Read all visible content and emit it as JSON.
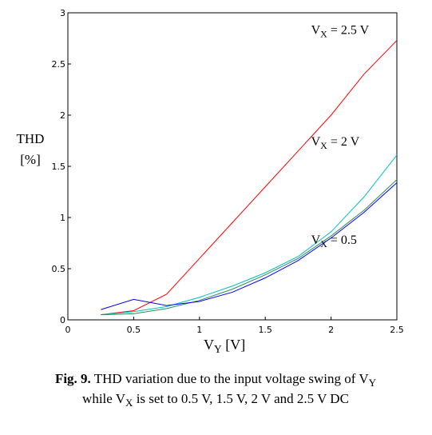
{
  "chart_data": {
    "type": "line",
    "x": [
      0.25,
      0.5,
      0.75,
      1,
      1.25,
      1.5,
      1.75,
      2,
      2.25,
      2.5
    ],
    "series": [
      {
        "color": "#ff0000",
        "values": [
          0.05,
          0.09,
          0.25,
          0.6,
          0.95,
          1.3,
          1.65,
          2.0,
          2.4,
          2.73
        ]
      },
      {
        "color": "#00bfbf",
        "values": [
          0.05,
          0.08,
          0.13,
          0.22,
          0.33,
          0.46,
          0.62,
          0.86,
          1.2,
          1.61
        ]
      },
      {
        "color": "#2e8b57",
        "values": [
          0.05,
          0.06,
          0.11,
          0.19,
          0.3,
          0.44,
          0.6,
          0.82,
          1.07,
          1.37
        ]
      },
      {
        "color": "#0000ff",
        "values": [
          0.1,
          0.2,
          0.14,
          0.18,
          0.27,
          0.41,
          0.58,
          0.8,
          1.05,
          1.34
        ]
      }
    ],
    "xlim": [
      0,
      2.5
    ],
    "ylim": [
      0,
      3
    ],
    "xticks": [
      0,
      0.5,
      1,
      1.5,
      2,
      2.5
    ],
    "yticks": [
      0,
      0.5,
      1,
      1.5,
      2,
      2.5,
      3
    ],
    "ylabel": [
      "THD",
      "[%]"
    ],
    "xlabel": {
      "main": "V",
      "sub": "Y",
      "rest": " [V]"
    },
    "annotations": [
      {
        "main": "V",
        "sub": "X",
        "rest": " = 2.5 V",
        "x": 2.0,
        "y": 2.73
      },
      {
        "main": "V",
        "sub": "X",
        "rest": " = 2 V",
        "x": 2.0,
        "y": 1.64
      },
      {
        "main": "V",
        "sub": "X",
        "rest": "  =  0.5",
        "x": 2.0,
        "y": 0.68
      }
    ],
    "caption": [
      [
        {
          "text": "Fig. 9.",
          "style": "b"
        },
        {
          "text": " THD variation due to the input voltage swing of V"
        },
        {
          "text": "Y",
          "style": "sub"
        }
      ],
      [
        {
          "text": "while V"
        },
        {
          "text": "X",
          "style": "sub"
        },
        {
          "text": " is set to 0.5 V, 1.5 V, 2 V and 2.5 V DC"
        }
      ]
    ]
  }
}
